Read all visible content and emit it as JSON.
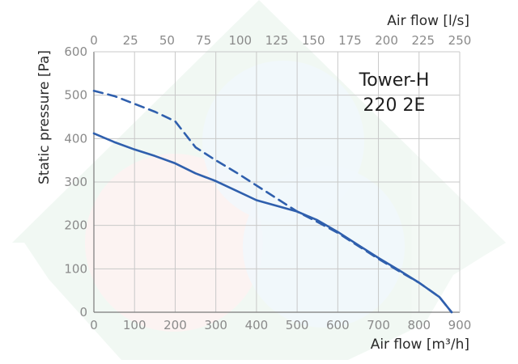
{
  "chart_data": {
    "type": "line",
    "title": "",
    "annotation": [
      "Tower-H",
      "220 2E"
    ],
    "xlabel": "Air flow [m³/h]",
    "x2label": "Air flow [l/s]",
    "ylabel": "Static pressure [Pa]",
    "xlim": [
      0,
      900
    ],
    "x2lim": [
      0,
      250
    ],
    "ylim": [
      0,
      600
    ],
    "x_ticks": [
      "0",
      "100",
      "200",
      "300",
      "400",
      "500",
      "600",
      "700",
      "800",
      "900"
    ],
    "x2_ticks": [
      "0",
      "25",
      "50",
      "75",
      "100",
      "125",
      "150",
      "175",
      "200",
      "225",
      "250"
    ],
    "y_ticks": [
      "0",
      "100",
      "200",
      "300",
      "400",
      "500",
      "600"
    ],
    "grid": true,
    "series": [
      {
        "style": "solid",
        "color": "#2f5fad",
        "x": [
          0,
          20,
          50,
          100,
          150,
          200,
          250,
          300,
          350,
          400,
          450,
          500,
          550,
          600,
          650,
          700,
          750,
          800,
          850,
          880
        ],
        "y": [
          412,
          404,
          392,
          375,
          360,
          343,
          320,
          302,
          280,
          258,
          245,
          232,
          212,
          185,
          155,
          125,
          97,
          68,
          35,
          0
        ]
      },
      {
        "style": "dashed",
        "color": "#2f5fad",
        "x": [
          0,
          50,
          100,
          150,
          200,
          250,
          300,
          350,
          400,
          450,
          500,
          550,
          600,
          650,
          700,
          750,
          800,
          850,
          880
        ],
        "y": [
          510,
          498,
          480,
          462,
          440,
          380,
          350,
          322,
          292,
          262,
          232,
          208,
          183,
          153,
          123,
          95,
          68,
          35,
          0
        ]
      }
    ]
  }
}
